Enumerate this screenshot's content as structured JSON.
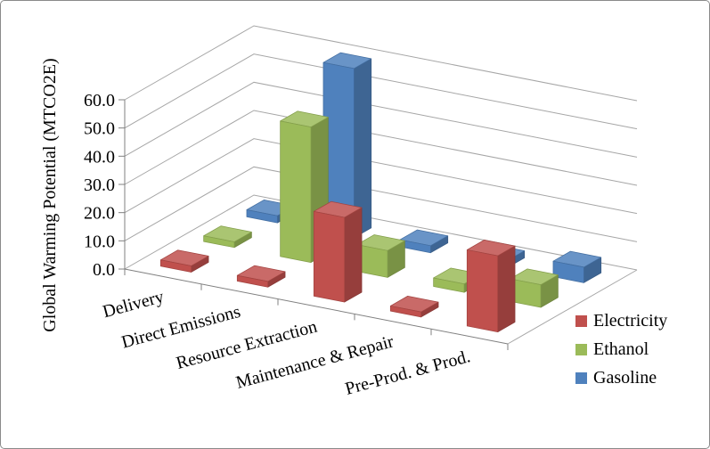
{
  "frame": {
    "background": "#FFFFFF",
    "border_color": "#8A8A8A"
  },
  "chart_data": {
    "type": "bar",
    "projection": "3d-column",
    "title": "",
    "xlabel": "",
    "ylabel": "Global Warming Potential (MTCO2E)",
    "categories": [
      "Delivery",
      "Direct Emissions",
      "Resource Extraction",
      "Maintenance & Repair",
      "Pre-Prod. & Prod."
    ],
    "series": [
      {
        "name": "Electricity",
        "color": "#C0504D",
        "values": [
          2.2,
          2.0,
          30.0,
          1.8,
          27.0
        ]
      },
      {
        "name": "Ethanol",
        "color": "#9BBB59",
        "values": [
          2.0,
          48.0,
          9.5,
          3.0,
          8.0
        ]
      },
      {
        "name": "Gasoline",
        "color": "#4F81BD",
        "values": [
          2.5,
          60.0,
          2.5,
          2.5,
          5.5
        ]
      }
    ],
    "ylim": [
      0,
      60
    ],
    "ytick_step": 10,
    "ytick_labels": [
      "0.0",
      "10.0",
      "20.0",
      "30.0",
      "40.0",
      "50.0",
      "60.0"
    ],
    "grid": true,
    "legend_position": "bottom-right",
    "colors": {
      "gridline": "#A6A6A6",
      "axis": "#808080",
      "text": "#000000"
    }
  }
}
